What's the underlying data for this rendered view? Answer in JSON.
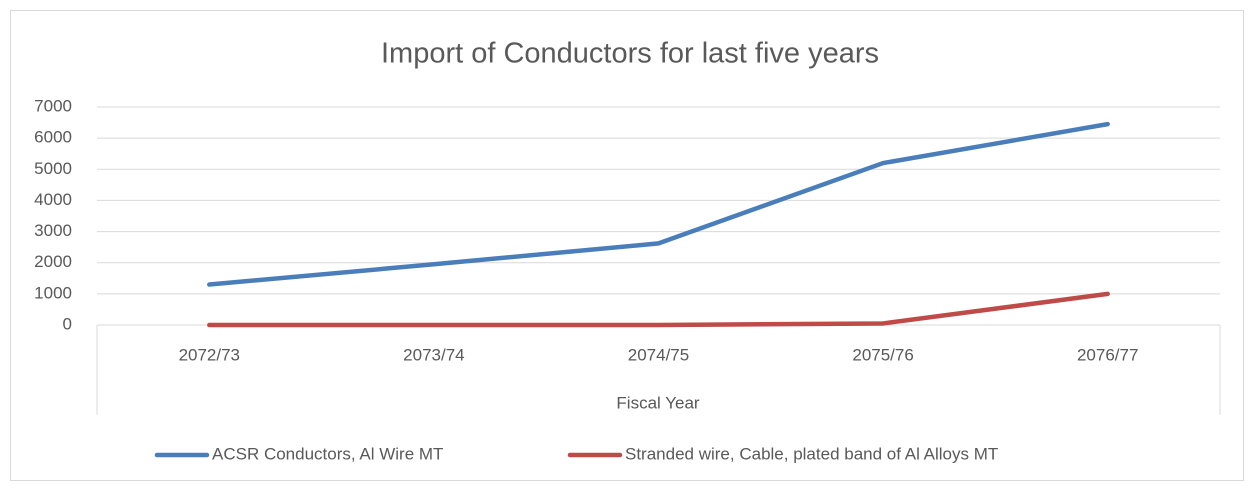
{
  "chart_data": {
    "type": "line",
    "title": "Import of Conductors for last five years",
    "x_label": "Fiscal Year",
    "categories": [
      "2072/73",
      "2073/74",
      "2074/75",
      "2075/76",
      "2076/77"
    ],
    "series": [
      {
        "name": "ACSR Conductors, Al Wire MT",
        "color": "#4a7ebb",
        "values": [
          1300,
          1950,
          2620,
          5200,
          6450
        ]
      },
      {
        "name": "Stranded wire, Cable, plated band of Al Alloys MT",
        "color": "#be4b48",
        "values": [
          0,
          0,
          0,
          50,
          1000
        ]
      }
    ],
    "ylim": [
      0,
      7000
    ],
    "yticks": [
      0,
      1000,
      2000,
      3000,
      4000,
      5000,
      6000,
      7000
    ],
    "grid": true,
    "legend": "bottom"
  }
}
